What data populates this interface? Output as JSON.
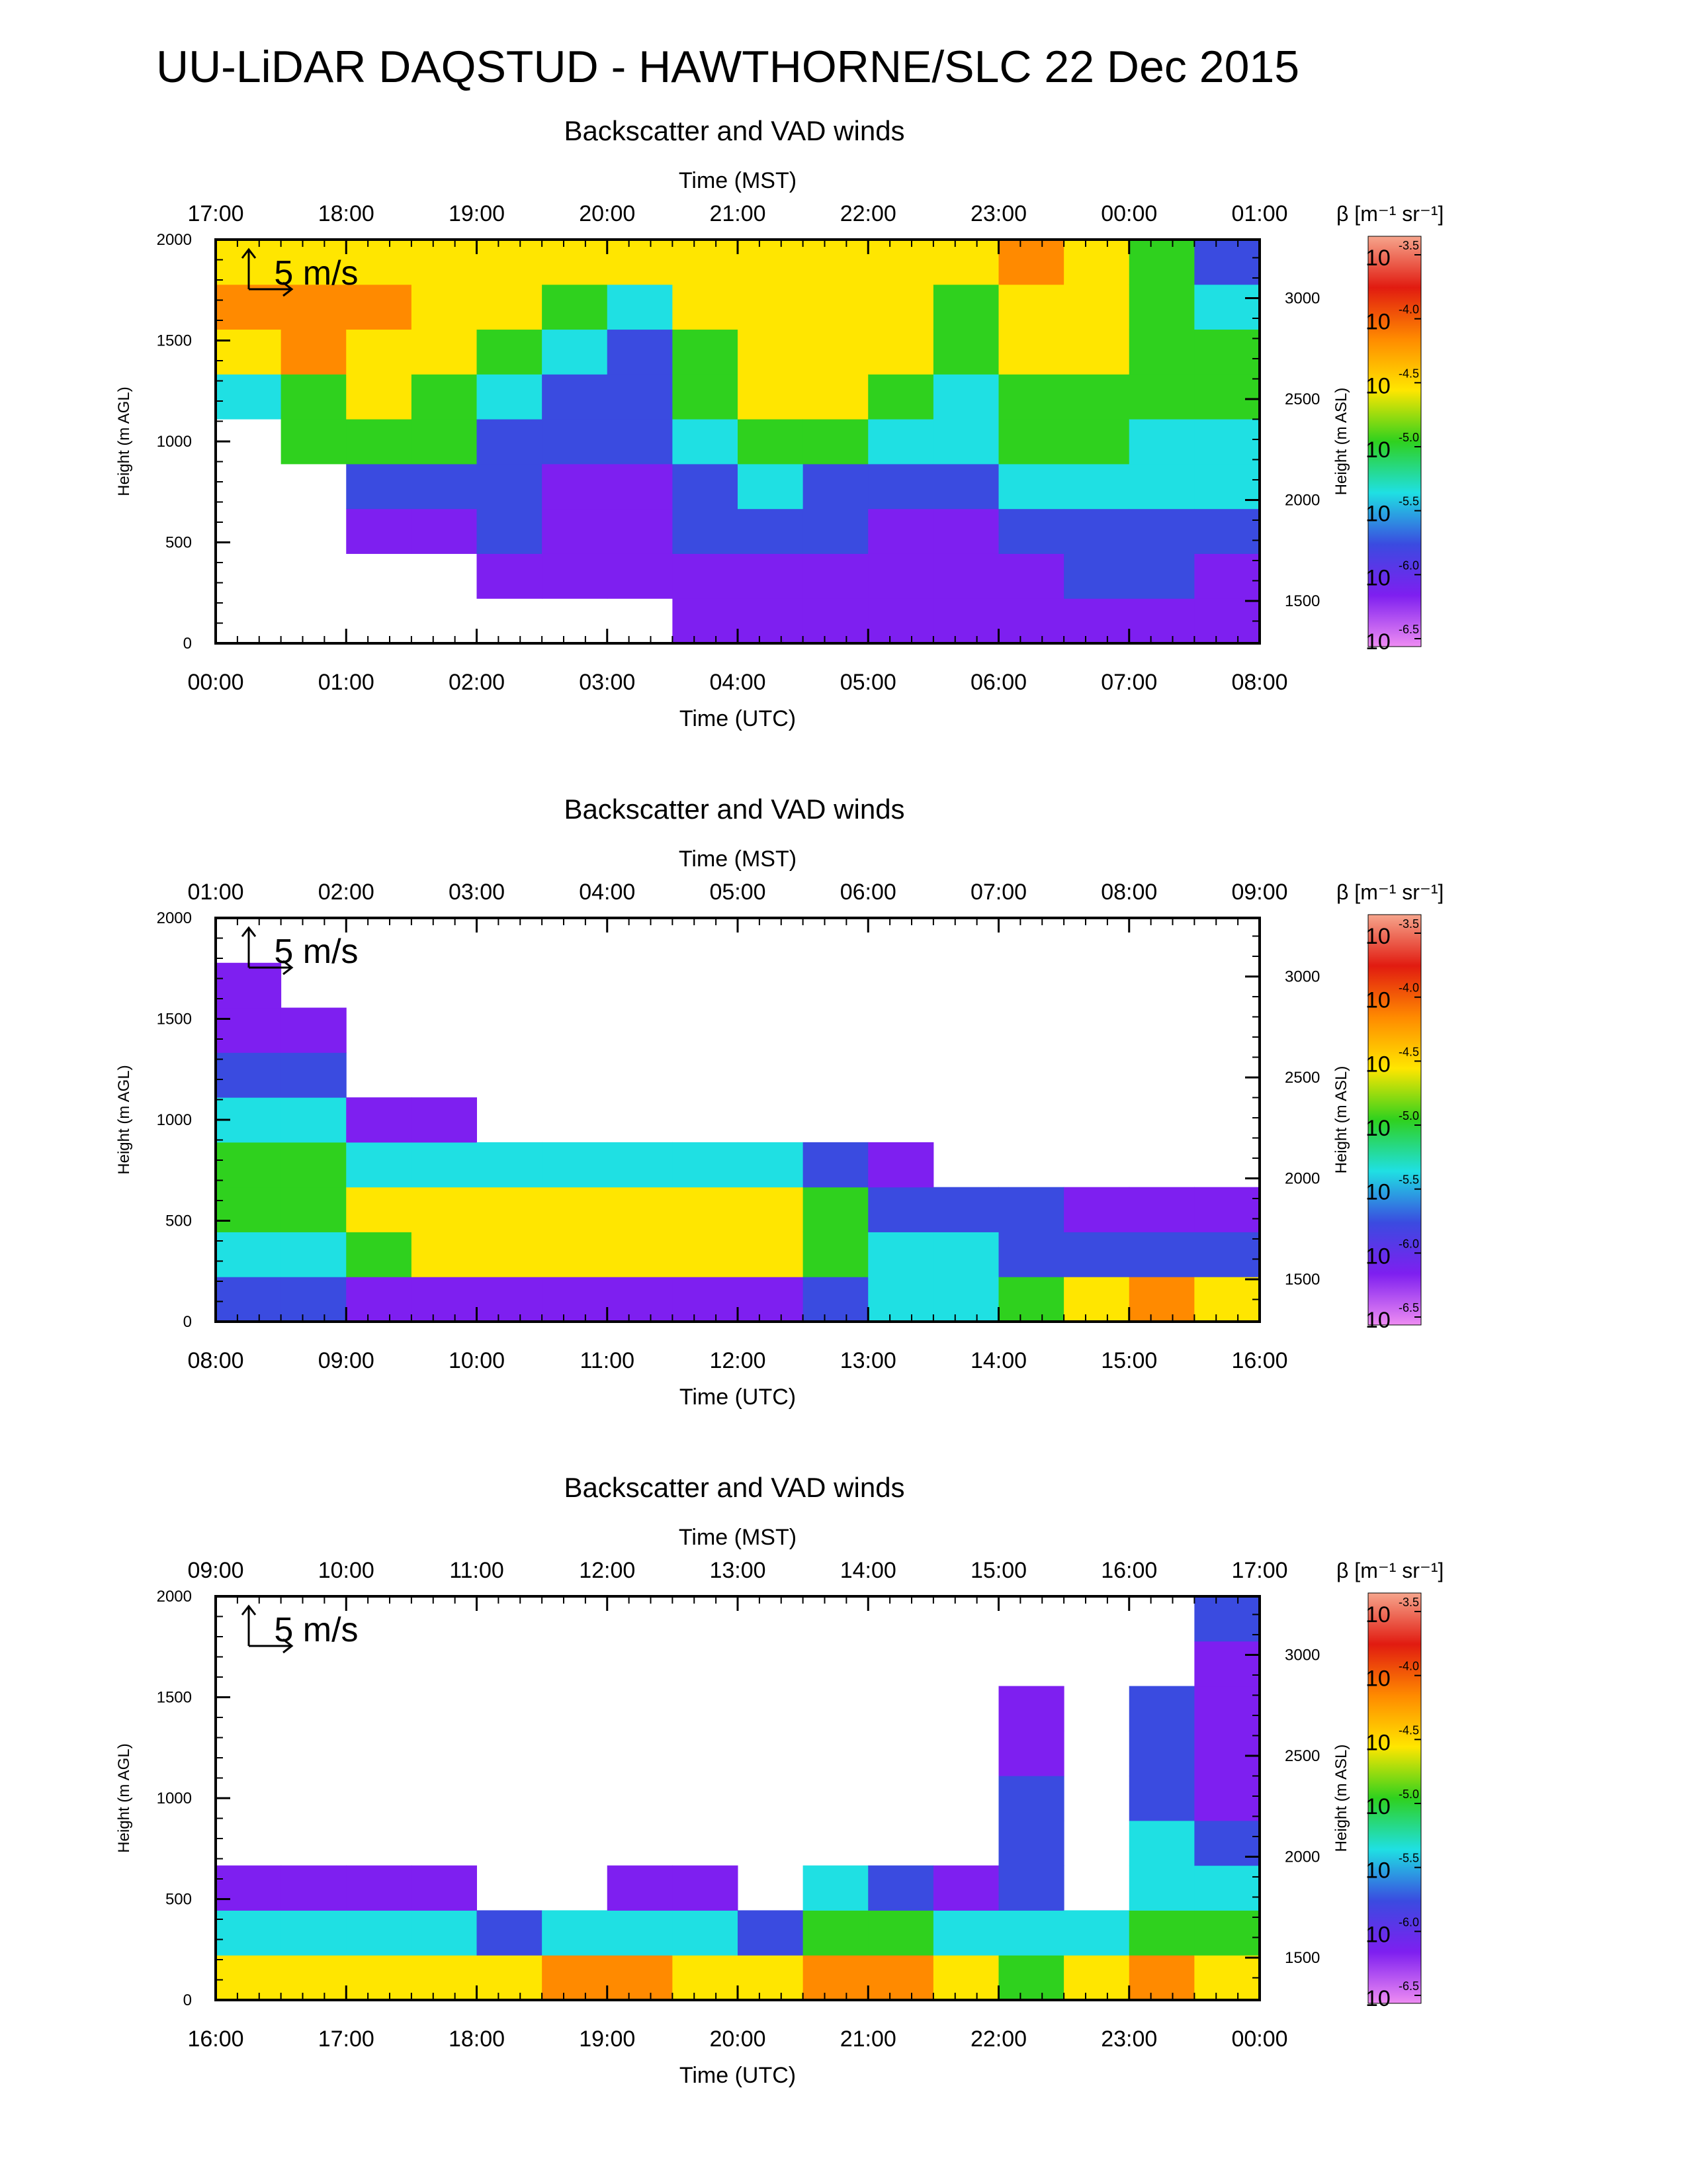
{
  "page_title": "UU-LiDAR DAQSTUD - HAWTHORNE/SLC 22 Dec 2015",
  "colorbar": {
    "label_html": "β [m⁻¹ sr⁻¹]",
    "base": "10",
    "exponents": [
      "-3.5",
      "-4.0",
      "-4.5",
      "-5.0",
      "-5.5",
      "-6.0",
      "-6.5"
    ],
    "stops": [
      "#f6a58c",
      "#e11b10",
      "#ff8a00",
      "#ffe600",
      "#2fd11e",
      "#1fe0e3",
      "#3a4be0",
      "#7e1ff0",
      "#ee8cf2"
    ]
  },
  "chart_data": [
    {
      "type": "heatmap",
      "title": "Backscatter and VAD winds",
      "xlabel_bottom": "Time (UTC)",
      "xlabel_top": "Time (MST)",
      "ylabel_left": "Height (m AGL)",
      "ylabel_right": "Height (m ASL)",
      "scale_label": "5 m/s",
      "xlim_hours": [
        0,
        8
      ],
      "ylim": [
        0,
        2000
      ],
      "x_ticks": [
        "00:00",
        "01:00",
        "02:00",
        "03:00",
        "04:00",
        "05:00",
        "06:00",
        "07:00",
        "08:00"
      ],
      "x_ticks_top": [
        "17:00",
        "18:00",
        "19:00",
        "20:00",
        "21:00",
        "22:00",
        "23:00",
        "00:00",
        "01:00"
      ],
      "y_ticks": [
        0,
        500,
        1000,
        1500,
        2000
      ],
      "y_ticks_right": [
        1500,
        2000,
        2500,
        3000
      ],
      "log10_backscatter": [
        [
          0.0,
          -7.5,
          -7.5,
          -7.5,
          -7.5,
          -7.5,
          -7.5,
          -7.5,
          -7.5,
          -7.5
        ],
        [
          0.25,
          -7.5,
          -7.5,
          -7.5,
          -7.5,
          -7.5,
          -5.6,
          -4.6,
          -4.4,
          -4.6
        ],
        [
          0.75,
          -7.5,
          -7.5,
          -7.5,
          -7.5,
          -5.3,
          -5.0,
          -4.4,
          -4.2,
          -4.5
        ],
        [
          1.25,
          -7.5,
          -7.5,
          -6.4,
          -5.9,
          -5.3,
          -4.9,
          -4.5,
          -4.3,
          -4.7
        ],
        [
          1.75,
          -7.5,
          -7.5,
          -6.3,
          -5.9,
          -5.3,
          -5.1,
          -4.8,
          -4.5,
          -4.7
        ],
        [
          2.25,
          -7.5,
          -6.5,
          -6.2,
          -6.2,
          -6.0,
          -5.7,
          -5.3,
          -4.8,
          -4.5
        ],
        [
          2.75,
          -7.5,
          -6.5,
          -6.3,
          -6.3,
          -6.2,
          -6.0,
          -5.6,
          -5.3,
          -4.6
        ],
        [
          3.25,
          -7.5,
          -6.5,
          -6.3,
          -6.3,
          -6.2,
          -6.1,
          -6.0,
          -5.8,
          -4.9
        ],
        [
          3.75,
          -6.6,
          -6.3,
          -6.1,
          -5.9,
          -5.6,
          -5.2,
          -5.0,
          -4.8,
          -4.8
        ],
        [
          4.25,
          -6.5,
          -6.3,
          -6.0,
          -5.7,
          -5.2,
          -4.9,
          -4.7,
          -4.6,
          -4.7
        ],
        [
          4.75,
          -6.5,
          -6.3,
          -6.2,
          -5.9,
          -5.3,
          -4.9,
          -4.6,
          -4.5,
          -4.8
        ],
        [
          5.25,
          -6.5,
          -6.4,
          -6.3,
          -6.0,
          -5.5,
          -5.0,
          -4.7,
          -4.5,
          -4.8
        ],
        [
          5.75,
          -6.6,
          -6.4,
          -6.3,
          -6.2,
          -5.8,
          -5.4,
          -5.2,
          -5.0,
          -4.9
        ],
        [
          6.25,
          -6.5,
          -6.3,
          -6.0,
          -5.6,
          -5.3,
          -5.0,
          -4.8,
          -4.6,
          -4.4
        ],
        [
          6.75,
          -6.5,
          -6.2,
          -5.9,
          -5.6,
          -5.3,
          -5.0,
          -4.9,
          -4.8,
          -4.7
        ],
        [
          7.25,
          -6.3,
          -6.2,
          -6.0,
          -5.7,
          -5.4,
          -5.1,
          -5.0,
          -5.1,
          -5.2
        ],
        [
          7.75,
          -6.5,
          -6.3,
          -6.2,
          -5.8,
          -5.6,
          -5.3,
          -5.2,
          -5.6,
          -6.0
        ]
      ]
    },
    {
      "type": "heatmap",
      "title": "Backscatter and VAD winds",
      "xlabel_bottom": "Time (UTC)",
      "xlabel_top": "Time (MST)",
      "ylabel_left": "Height (m AGL)",
      "ylabel_right": "Height (m ASL)",
      "scale_label": "5 m/s",
      "xlim_hours": [
        8,
        16
      ],
      "ylim": [
        0,
        2000
      ],
      "x_ticks": [
        "08:00",
        "09:00",
        "10:00",
        "11:00",
        "12:00",
        "13:00",
        "14:00",
        "15:00",
        "16:00"
      ],
      "x_ticks_top": [
        "01:00",
        "02:00",
        "03:00",
        "04:00",
        "05:00",
        "06:00",
        "07:00",
        "08:00",
        "09:00"
      ],
      "y_ticks": [
        0,
        500,
        1000,
        1500,
        2000
      ],
      "y_ticks_right": [
        1500,
        2000,
        2500,
        3000
      ],
      "log10_backscatter": [
        [
          8.25,
          -6.0,
          -5.6,
          -5.3,
          -5.2,
          -5.6,
          -6.2,
          -6.3,
          -6.4,
          -7.5
        ],
        [
          8.75,
          -6.2,
          -5.5,
          -5.2,
          -5.0,
          -5.4,
          -6.1,
          -6.3,
          -7.5,
          -7.5
        ],
        [
          9.25,
          -6.3,
          -5.0,
          -4.9,
          -5.6,
          -6.3,
          -7.5,
          -7.5,
          -7.5,
          -7.5
        ],
        [
          9.75,
          -6.3,
          -4.7,
          -4.7,
          -5.7,
          -6.5,
          -7.5,
          -7.5,
          -7.5,
          -7.5
        ],
        [
          10.25,
          -6.3,
          -4.6,
          -4.5,
          -5.6,
          -7.5,
          -7.5,
          -7.5,
          -7.5,
          -7.5
        ],
        [
          10.75,
          -6.3,
          -4.7,
          -4.5,
          -5.5,
          -7.5,
          -7.5,
          -7.5,
          -7.5,
          -7.5
        ],
        [
          11.25,
          -6.3,
          -4.6,
          -4.5,
          -5.4,
          -7.5,
          -7.5,
          -7.5,
          -7.5,
          -7.5
        ],
        [
          11.75,
          -6.3,
          -4.8,
          -4.6,
          -5.6,
          -7.5,
          -7.5,
          -7.5,
          -7.5,
          -7.5
        ],
        [
          12.25,
          -6.3,
          -4.9,
          -4.8,
          -5.8,
          -7.5,
          -7.5,
          -7.5,
          -7.5,
          -7.5
        ],
        [
          12.75,
          -6.2,
          -5.1,
          -5.3,
          -6.1,
          -7.5,
          -7.5,
          -7.5,
          -7.5,
          -7.5
        ],
        [
          13.25,
          -5.8,
          -5.5,
          -5.9,
          -6.4,
          -7.5,
          -7.5,
          -7.5,
          -7.5,
          -7.5
        ],
        [
          13.75,
          -5.5,
          -5.8,
          -6.2,
          -7.5,
          -7.5,
          -7.5,
          -7.5,
          -7.5,
          -7.5
        ],
        [
          14.25,
          -5.0,
          -5.9,
          -6.2,
          -7.5,
          -7.5,
          -7.5,
          -7.5,
          -7.5,
          -7.5
        ],
        [
          14.75,
          -4.6,
          -6.0,
          -6.3,
          -7.5,
          -7.5,
          -7.5,
          -7.5,
          -7.5,
          -7.5
        ],
        [
          15.25,
          -4.4,
          -6.1,
          -6.4,
          -7.5,
          -7.5,
          -7.5,
          -7.5,
          -7.5,
          -7.5
        ],
        [
          15.75,
          -4.6,
          -6.1,
          -6.4,
          -7.5,
          -7.5,
          -7.5,
          -7.5,
          -7.5,
          -7.5
        ]
      ]
    },
    {
      "type": "heatmap",
      "title": "Backscatter and VAD winds",
      "xlabel_bottom": "Time (UTC)",
      "xlabel_top": "Time (MST)",
      "ylabel_left": "Height (m AGL)",
      "ylabel_right": "Height (m ASL)",
      "scale_label": "5 m/s",
      "xlim_hours": [
        16,
        24
      ],
      "ylim": [
        0,
        2000
      ],
      "x_ticks": [
        "16:00",
        "17:00",
        "18:00",
        "19:00",
        "20:00",
        "21:00",
        "22:00",
        "23:00",
        "00:00"
      ],
      "x_ticks_top": [
        "09:00",
        "10:00",
        "11:00",
        "12:00",
        "13:00",
        "14:00",
        "15:00",
        "16:00",
        "17:00"
      ],
      "y_ticks": [
        0,
        500,
        1000,
        1500,
        2000
      ],
      "y_ticks_right": [
        1500,
        2000,
        2500,
        3000
      ],
      "log10_backscatter": [
        [
          16.25,
          -4.6,
          -5.8,
          -6.4,
          -7.5,
          -7.5,
          -7.5,
          -7.5,
          -7.5,
          -7.5
        ],
        [
          16.75,
          -4.5,
          -5.7,
          -6.3,
          -7.5,
          -7.5,
          -7.5,
          -7.5,
          -7.5,
          -7.5
        ],
        [
          17.25,
          -4.5,
          -5.6,
          -6.3,
          -7.5,
          -7.5,
          -7.5,
          -7.5,
          -7.5,
          -7.5
        ],
        [
          17.75,
          -4.6,
          -5.8,
          -6.4,
          -7.5,
          -7.5,
          -7.5,
          -7.5,
          -7.5,
          -7.5
        ],
        [
          18.25,
          -4.7,
          -6.0,
          -7.5,
          -7.5,
          -7.5,
          -7.5,
          -7.5,
          -7.5,
          -7.5
        ],
        [
          18.75,
          -4.4,
          -5.8,
          -7.5,
          -7.5,
          -7.5,
          -7.5,
          -7.5,
          -7.5,
          -7.5
        ],
        [
          19.25,
          -4.4,
          -5.7,
          -6.4,
          -7.5,
          -7.5,
          -7.5,
          -7.5,
          -7.5,
          -7.5
        ],
        [
          19.75,
          -4.5,
          -5.8,
          -6.5,
          -7.5,
          -7.5,
          -7.5,
          -7.5,
          -7.5,
          -7.5
        ],
        [
          20.25,
          -4.5,
          -5.9,
          -7.5,
          -7.5,
          -7.5,
          -7.5,
          -7.5,
          -7.5,
          -7.5
        ],
        [
          20.75,
          -4.3,
          -5.0,
          -5.6,
          -7.5,
          -7.5,
          -7.5,
          -7.5,
          -7.5,
          -7.5
        ],
        [
          21.25,
          -4.2,
          -5.3,
          -6.2,
          -7.5,
          -7.5,
          -7.5,
          -7.5,
          -7.5,
          -7.5
        ],
        [
          21.75,
          -4.5,
          -5.6,
          -6.3,
          -7.5,
          -7.5,
          -7.5,
          -7.5,
          -7.5,
          -7.5
        ],
        [
          22.25,
          -5.0,
          -5.7,
          -6.0,
          -6.1,
          -6.2,
          -6.3,
          -6.4,
          -7.5,
          -7.5
        ],
        [
          22.75,
          -4.9,
          -5.7,
          -7.5,
          -7.5,
          -7.5,
          -7.5,
          -7.5,
          -7.5,
          -7.5
        ],
        [
          23.25,
          -4.4,
          -5.3,
          -5.5,
          -5.7,
          -5.9,
          -6.1,
          -6.2,
          -7.5,
          -7.5
        ],
        [
          23.75,
          -4.5,
          -5.1,
          -5.6,
          -6.1,
          -6.3,
          -6.4,
          -6.4,
          -6.3,
          -6.2
        ]
      ]
    }
  ]
}
